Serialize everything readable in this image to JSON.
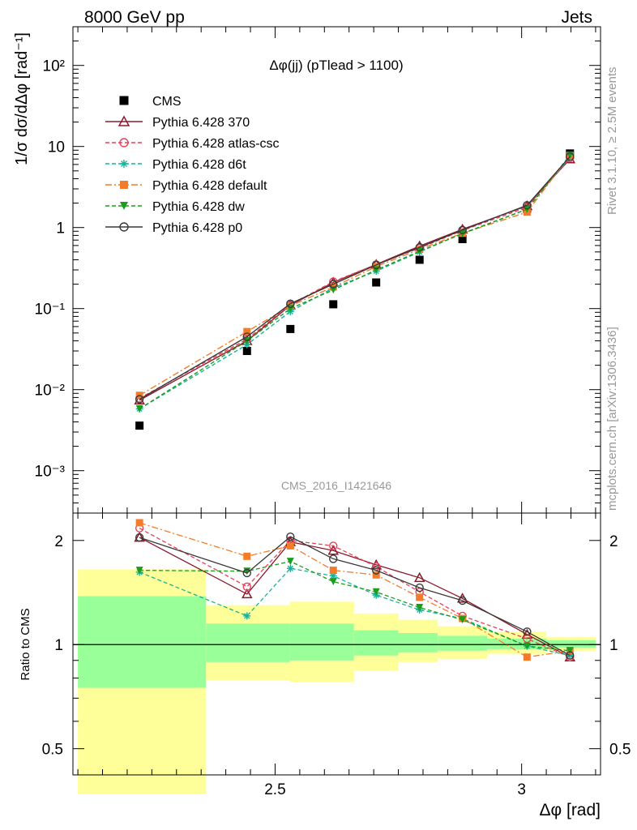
{
  "header": {
    "left": "8000 GeV pp",
    "right": "Jets"
  },
  "side_text": {
    "rivet": "Rivet 3.1.10, ≥ 2.5M events",
    "mcplots": "mcplots.cern.ch [arXiv:1306.3436]"
  },
  "chart_data": [
    {
      "type": "scatter",
      "title": "Δφ(jj) (pTlead >  1100)",
      "ylabel": "1/σ dσ/dΔφ [rad⁻¹]",
      "watermark": "CMS_2016_I1421646",
      "yscale": "log",
      "ylim": [
        0.0003,
        300
      ],
      "xlim": [
        2.09,
        3.16
      ],
      "ytick_labels": [
        "10⁻³",
        "10⁻²",
        "10⁻¹",
        "1",
        "10",
        "10²"
      ],
      "x": [
        2.225,
        2.443,
        2.531,
        2.618,
        2.705,
        2.793,
        2.88,
        3.011,
        3.098
      ],
      "legend_position": "top-left",
      "series": [
        {
          "name": "CMS",
          "color": "#000000",
          "marker": "square",
          "values": [
            0.0036,
            0.03,
            0.056,
            0.113,
            0.21,
            0.4,
            0.72,
            1.7,
            8.2
          ]
        },
        {
          "name": "Pythia 6.428 370",
          "color": "#8b1a2b",
          "marker": "triangle-open",
          "line": "solid",
          "values": [
            0.0074,
            0.04,
            0.11,
            0.21,
            0.35,
            0.59,
            0.95,
            1.85,
            7.0
          ]
        },
        {
          "name": "Pythia 6.428 atlas-csc",
          "color": "#e8405a",
          "marker": "circle-open",
          "line": "dashed",
          "values": [
            0.0078,
            0.042,
            0.112,
            0.215,
            0.35,
            0.56,
            0.92,
            1.78,
            7.2
          ]
        },
        {
          "name": "Pythia 6.428 d6t",
          "color": "#1ab29a",
          "marker": "star",
          "line": "dashed",
          "values": [
            0.0058,
            0.036,
            0.092,
            0.18,
            0.29,
            0.5,
            0.85,
            1.68,
            7.4
          ]
        },
        {
          "name": "Pythia 6.428 default",
          "color": "#f27c2c",
          "marker": "square",
          "line": "dashdot",
          "values": [
            0.0085,
            0.052,
            0.108,
            0.185,
            0.33,
            0.54,
            0.85,
            1.55,
            7.8
          ]
        },
        {
          "name": "Pythia 6.428 dw",
          "color": "#1a9e1a",
          "marker": "triangle-down",
          "line": "dashed",
          "values": [
            0.0058,
            0.04,
            0.1,
            0.17,
            0.3,
            0.51,
            0.84,
            1.68,
            7.8
          ]
        },
        {
          "name": "Pythia 6.428 p0",
          "color": "#3a3a3a",
          "marker": "circle-open",
          "line": "solid",
          "values": [
            0.0076,
            0.045,
            0.115,
            0.2,
            0.345,
            0.57,
            0.93,
            1.88,
            7.5
          ]
        }
      ]
    },
    {
      "type": "scatter",
      "ylabel": "Ratio to CMS",
      "xlabel": "Δφ [rad]",
      "yscale": "log",
      "ylim": [
        0.42,
        2.4
      ],
      "xlim": [
        2.09,
        3.16
      ],
      "xtick_labels": [
        "2.5",
        "3"
      ],
      "ytick_labels": [
        "0.5",
        "1",
        "2"
      ],
      "bands": [
        {
          "x0": 2.1,
          "x1": 2.36,
          "yellow": [
            0.37,
            1.65
          ],
          "green": [
            0.75,
            1.38
          ]
        },
        {
          "x0": 2.36,
          "x1": 2.53,
          "yellow": [
            0.79,
            1.3
          ],
          "green": [
            0.89,
            1.15
          ]
        },
        {
          "x0": 2.53,
          "x1": 2.66,
          "yellow": [
            0.78,
            1.33
          ],
          "green": [
            0.9,
            1.15
          ]
        },
        {
          "x0": 2.66,
          "x1": 2.75,
          "yellow": [
            0.84,
            1.23
          ],
          "green": [
            0.93,
            1.1
          ]
        },
        {
          "x0": 2.75,
          "x1": 2.83,
          "yellow": [
            0.89,
            1.18
          ],
          "green": [
            0.95,
            1.08
          ]
        },
        {
          "x0": 2.83,
          "x1": 2.93,
          "yellow": [
            0.91,
            1.13
          ],
          "green": [
            0.96,
            1.06
          ]
        },
        {
          "x0": 2.93,
          "x1": 3.05,
          "yellow": [
            0.94,
            1.09
          ],
          "green": [
            0.97,
            1.04
          ]
        },
        {
          "x0": 3.05,
          "x1": 3.15,
          "yellow": [
            0.96,
            1.05
          ],
          "green": [
            0.98,
            1.03
          ]
        }
      ],
      "series": [
        {
          "name": "Pythia 6.428 370",
          "values": [
            2.04,
            1.4,
            1.98,
            1.87,
            1.7,
            1.56,
            1.36,
            1.07,
            0.92
          ]
        },
        {
          "name": "Pythia 6.428 atlas-csc",
          "values": [
            2.17,
            1.47,
            2.0,
            1.93,
            1.68,
            1.42,
            1.21,
            1.04,
            0.92
          ]
        },
        {
          "name": "Pythia 6.428 d6t",
          "values": [
            1.62,
            1.21,
            1.66,
            1.58,
            1.39,
            1.26,
            1.19,
            0.99,
            0.93
          ]
        },
        {
          "name": "Pythia 6.428 default",
          "values": [
            2.25,
            1.8,
            1.93,
            1.64,
            1.59,
            1.37,
            1.19,
            0.92,
            0.96
          ]
        },
        {
          "name": "Pythia 6.428 dw",
          "values": [
            1.64,
            1.63,
            1.74,
            1.52,
            1.42,
            1.28,
            1.18,
            0.99,
            0.96
          ]
        },
        {
          "name": "Pythia 6.428 p0",
          "values": [
            2.04,
            1.61,
            2.05,
            1.77,
            1.64,
            1.46,
            1.34,
            1.09,
            0.93
          ]
        }
      ]
    }
  ]
}
